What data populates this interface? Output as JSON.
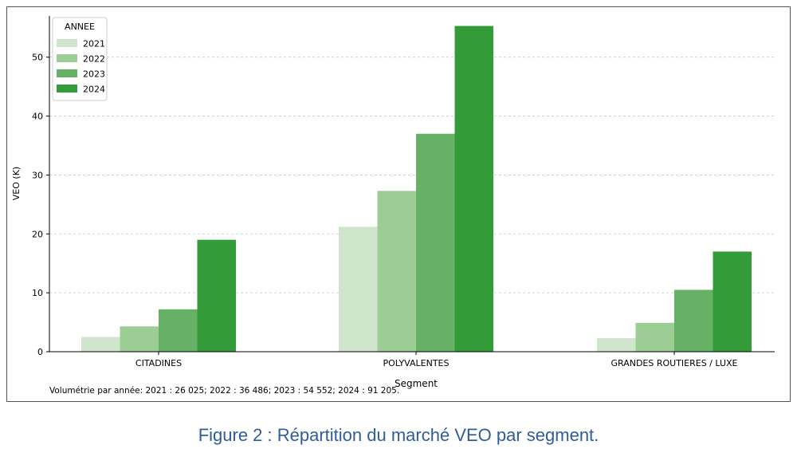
{
  "caption": "Figure 2 : Répartition du marché VEO par segment.",
  "footnote": "Volumétrie par année: 2021 : 26 025; 2022 : 36 486; 2023 : 54 552; 2024 : 91 205.",
  "chart_data": {
    "type": "bar",
    "title": "",
    "xlabel": "Segment",
    "ylabel": "VEO (K)",
    "categories": [
      "CITADINES",
      "POLYVALENTES",
      "GRANDES ROUTIERES / LUXE"
    ],
    "ylim": [
      0,
      57
    ],
    "yticks": [
      0,
      10,
      20,
      30,
      40,
      50
    ],
    "grid": "y-dashed",
    "legend": {
      "title": "ANNEE",
      "placement": "top-left"
    },
    "series": [
      {
        "name": "2021",
        "color": "#cfe5cc",
        "values": [
          2.5,
          21.2,
          2.3
        ]
      },
      {
        "name": "2022",
        "color": "#9bcd94",
        "values": [
          4.3,
          27.3,
          4.9
        ]
      },
      {
        "name": "2023",
        "color": "#66b165",
        "values": [
          7.2,
          37.0,
          10.5
        ]
      },
      {
        "name": "2024",
        "color": "#339b37",
        "values": [
          19.0,
          55.3,
          17.0
        ]
      }
    ]
  }
}
